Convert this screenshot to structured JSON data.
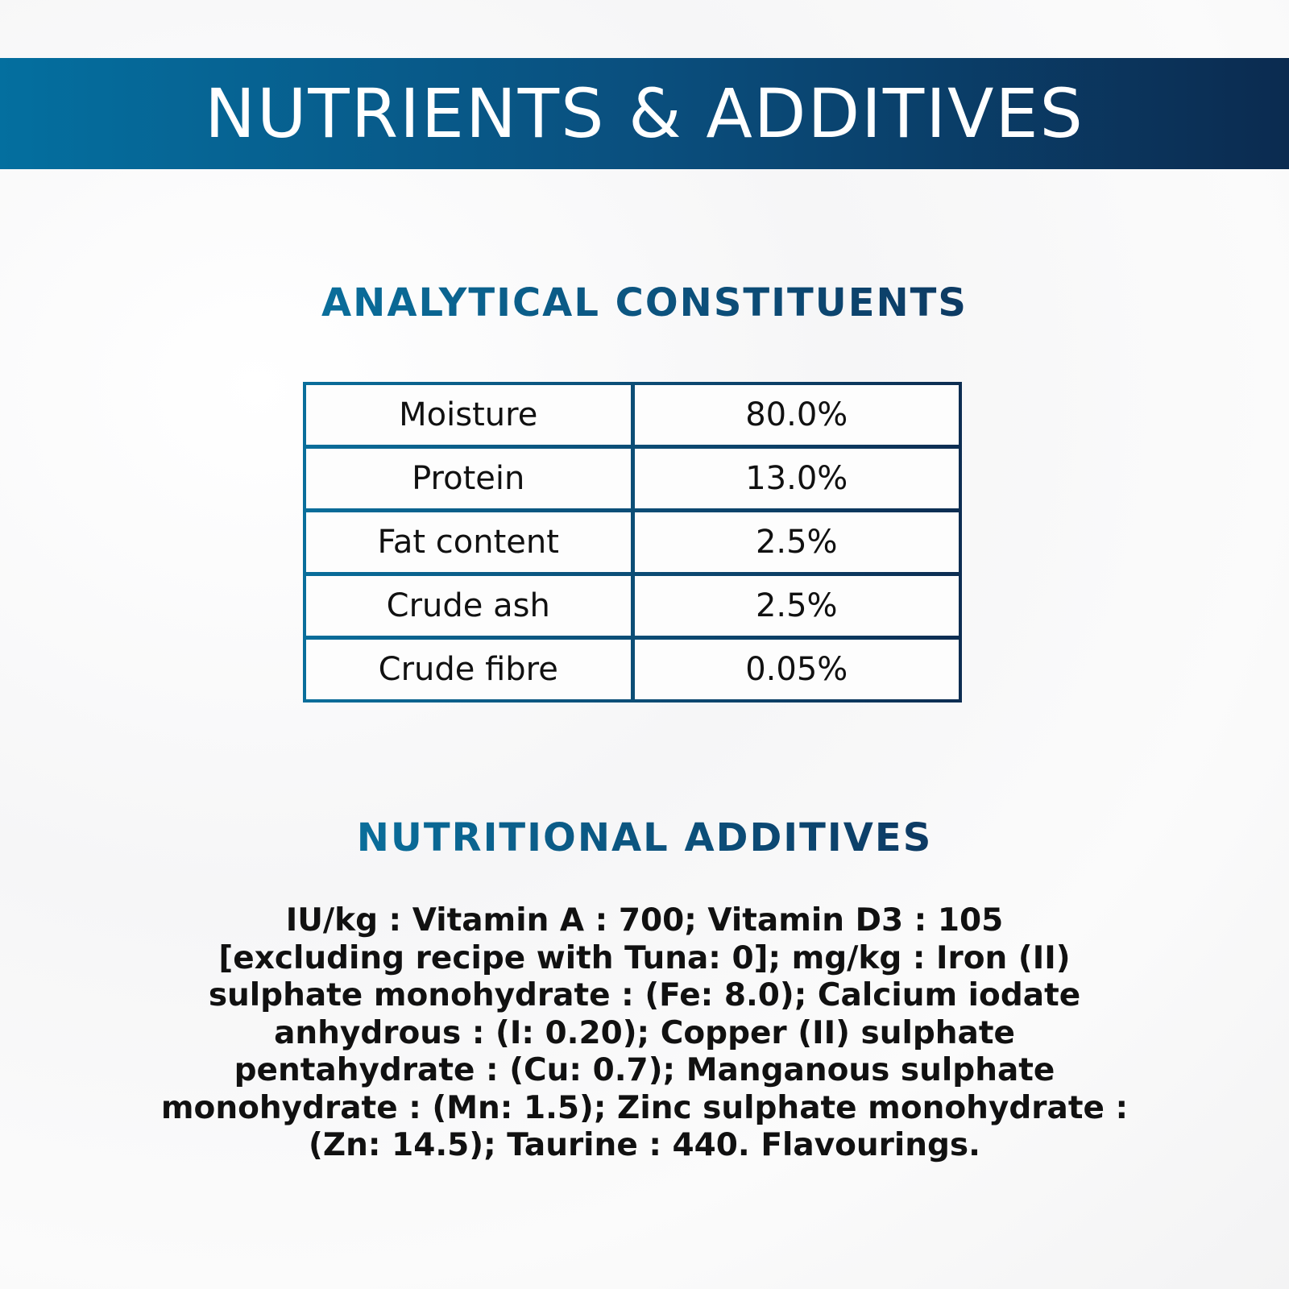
{
  "banner": {
    "title": "NUTRIENTS & ADDITIVES"
  },
  "analytical": {
    "heading": "ANALYTICAL CONSTITUENTS",
    "rows": [
      {
        "label": "Moisture",
        "value": "80.0%"
      },
      {
        "label": "Protein",
        "value": "13.0%"
      },
      {
        "label": "Fat content",
        "value": "2.5%"
      },
      {
        "label": "Crude ash",
        "value": "2.5%"
      },
      {
        "label": "Crude fibre",
        "value": "0.05%"
      }
    ]
  },
  "additives": {
    "heading": "NUTRITIONAL ADDITIVES",
    "lines": [
      "IU/kg : Vitamin A : 700; Vitamin D3 : 105",
      "[excluding recipe with Tuna: 0]; mg/kg : Iron (II)",
      "sulphate monohydrate : (Fe: 8.0); Calcium iodate",
      "anhydrous : (I: 0.20); Copper (II) sulphate",
      "pentahydrate : (Cu: 0.7); Manganous sulphate",
      "monohydrate : (Mn: 1.5); Zinc sulphate monohydrate :",
      "(Zn: 14.5); Taurine : 440. Flavourings."
    ]
  },
  "colors": {
    "banner_start": "#046f9f",
    "banner_end": "#0b2b50",
    "accent": "#0a6e9b"
  }
}
